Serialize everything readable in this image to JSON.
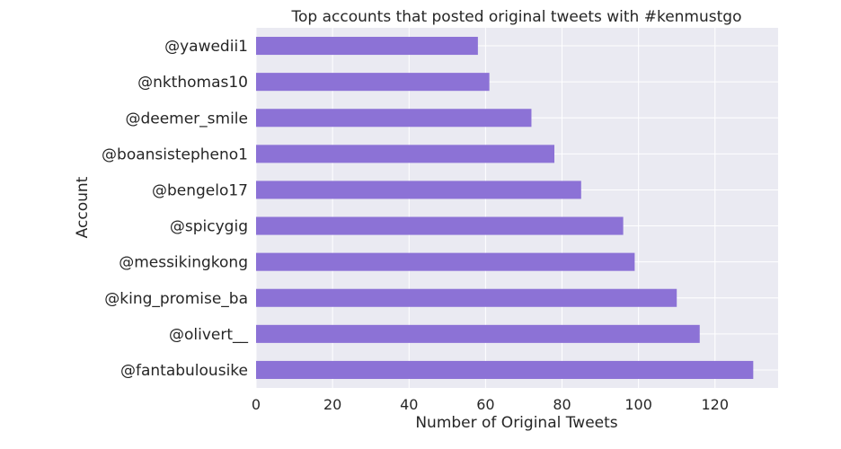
{
  "chart_data": {
    "type": "bar",
    "orientation": "horizontal",
    "title": "Top accounts that posted original tweets with #kenmustgo",
    "xlabel": "Number of Original Tweets",
    "ylabel": "Account",
    "categories": [
      "@fantabulousike",
      "@olivert__",
      "@king_promise_ba",
      "@messikingkong",
      "@spicygig",
      "@bengelo17",
      "@boansistepheno1",
      "@deemer_smile",
      "@nkthomas10",
      "@yawedii1"
    ],
    "values": [
      130,
      116,
      110,
      99,
      96,
      85,
      78,
      72,
      61,
      58
    ],
    "xlim": [
      0,
      136.5
    ],
    "xticks": [
      0,
      20,
      40,
      60,
      80,
      100,
      120
    ],
    "bar_color": "#8c72d6",
    "background_color": "#eaeaf2",
    "grid": true,
    "legend": "none"
  }
}
